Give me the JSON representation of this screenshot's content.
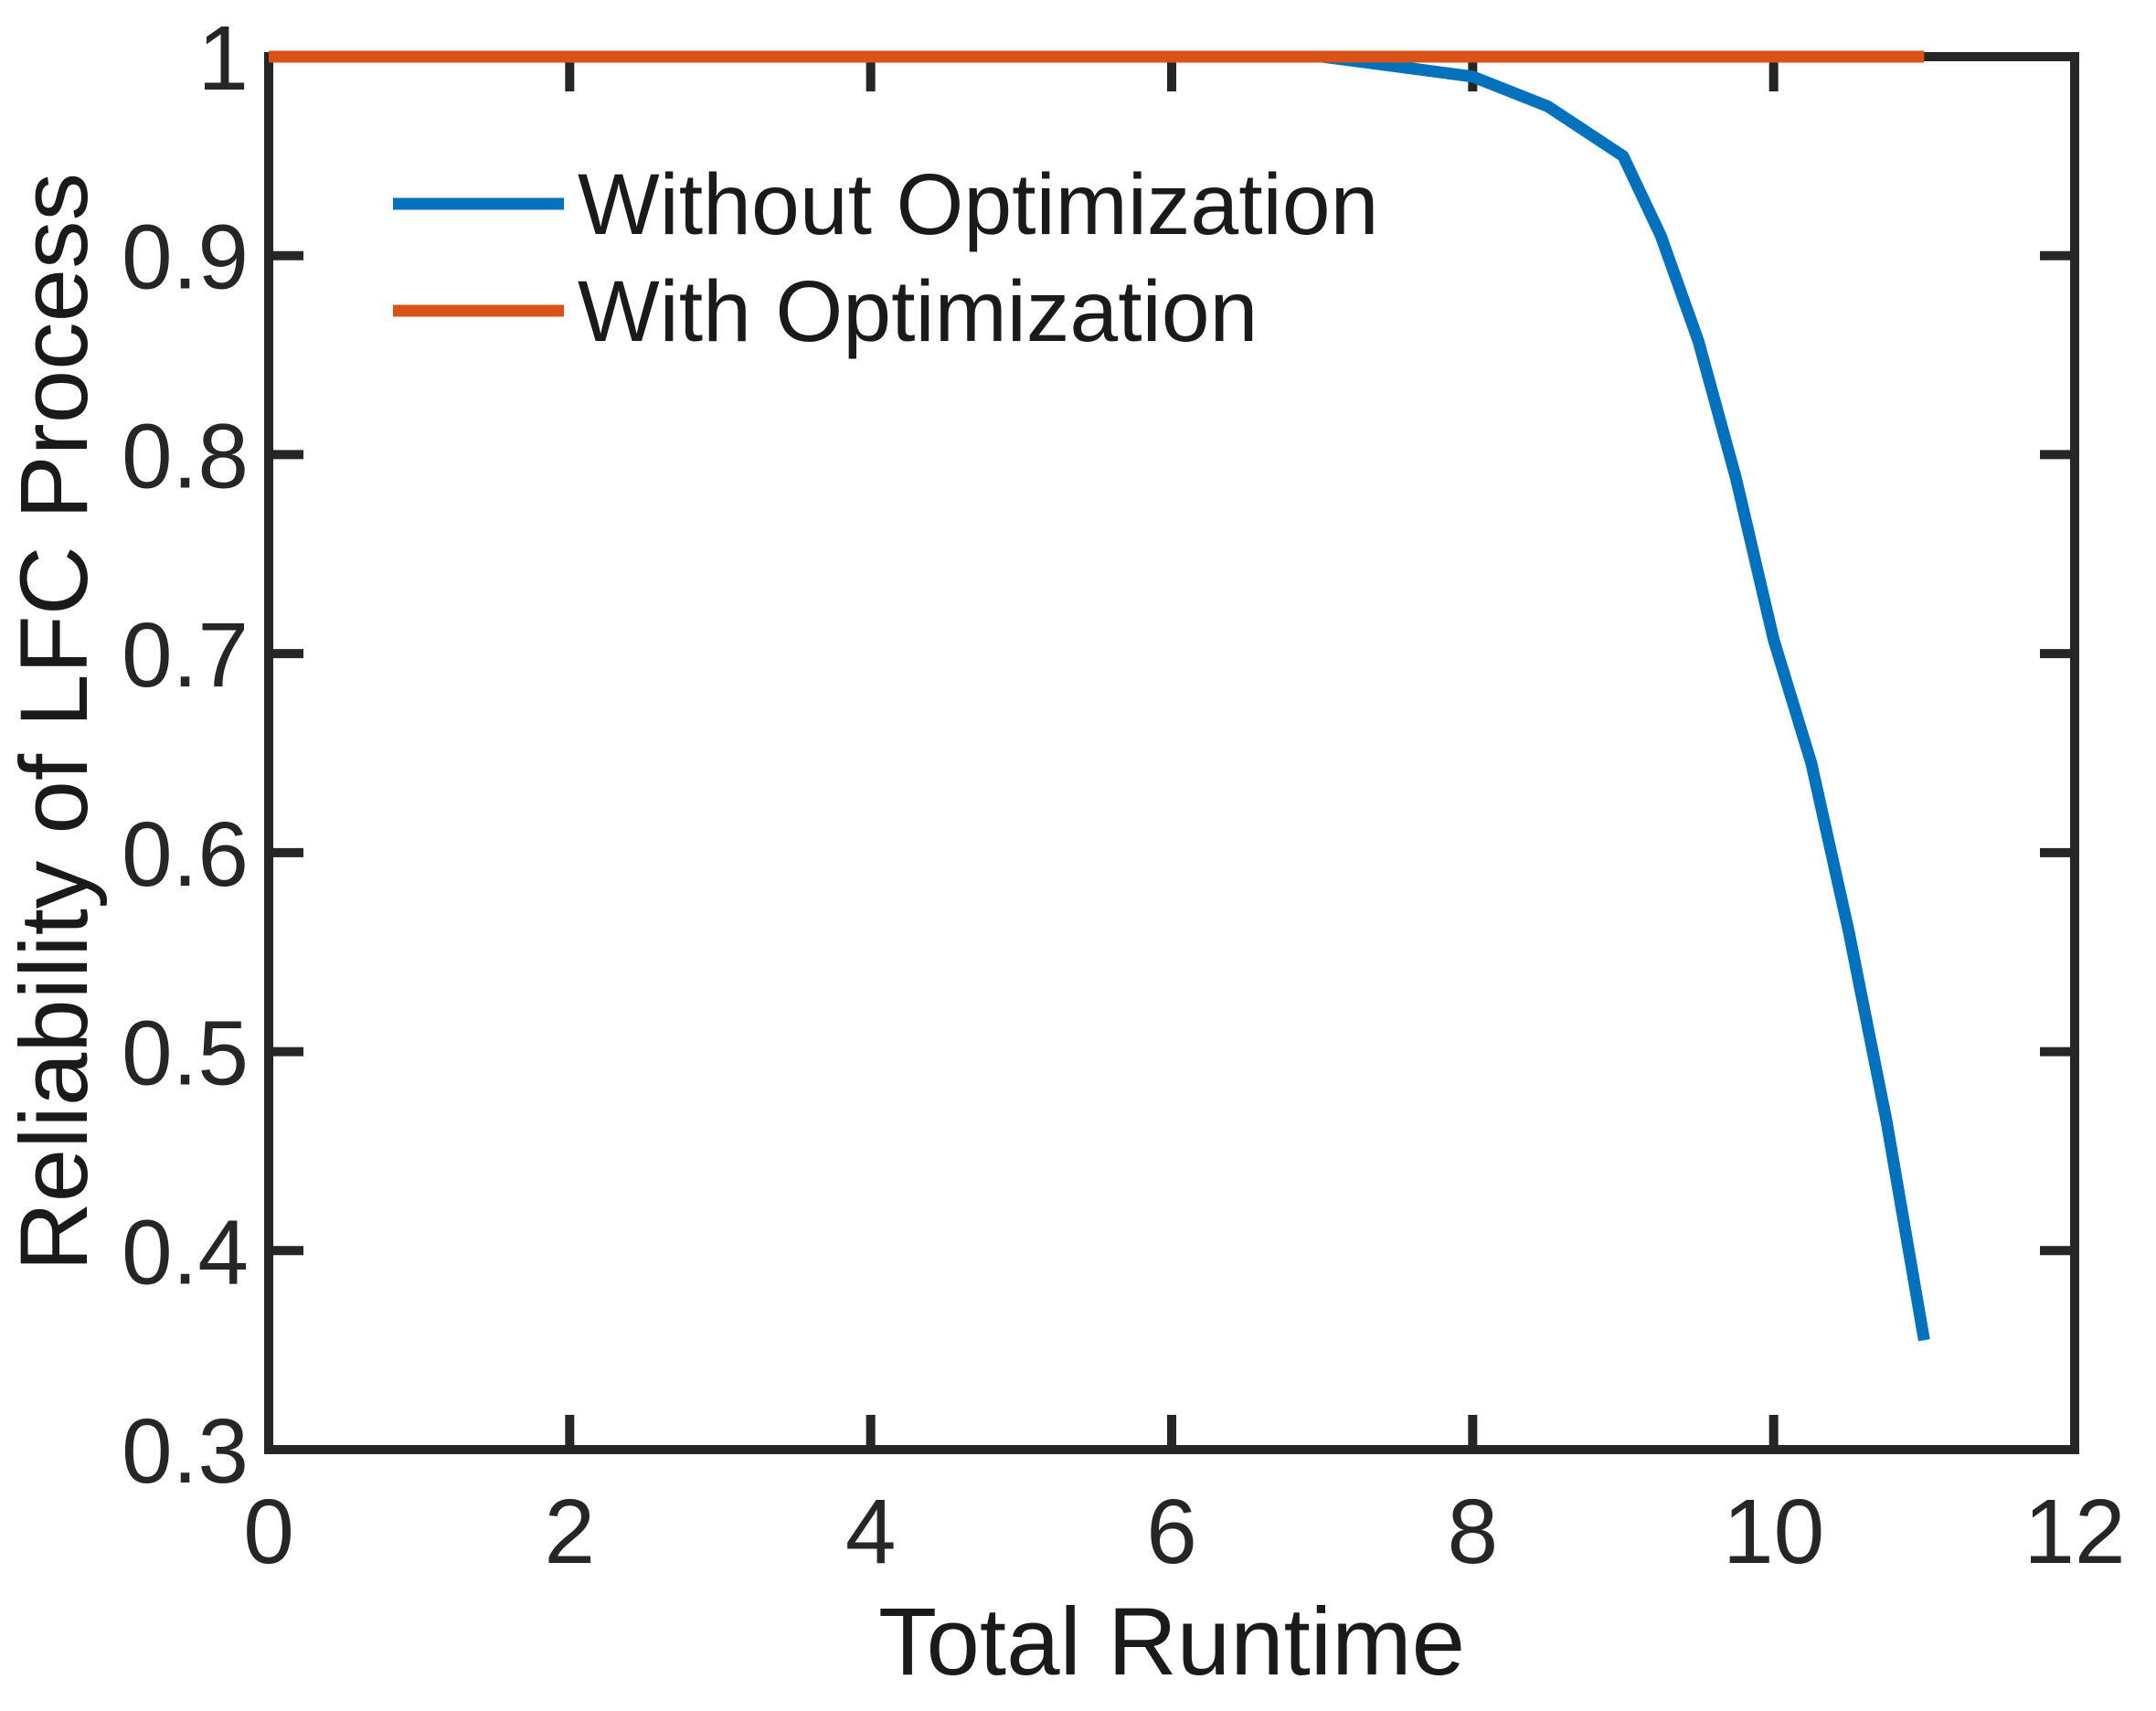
{
  "figure": {
    "background_color": "#ffffff",
    "axes_color": "#262626",
    "text_color": "#1a1a1a"
  },
  "chart_data": {
    "type": "line",
    "title": "",
    "xlabel": "Total Runtime",
    "ylabel": "Reliability of LFC Process",
    "xlim": [
      0,
      12
    ],
    "ylim": [
      0.3,
      1.0
    ],
    "grid": false,
    "legend_position": "upper-left-inside",
    "legend_frame": false,
    "x_tick_labels": [
      "0",
      "2",
      "4",
      "6",
      "8",
      "10",
      "12"
    ],
    "x_tick_values": [
      0,
      2,
      4,
      6,
      8,
      10,
      12
    ],
    "y_tick_labels": [
      "0.3",
      "0.4",
      "0.5",
      "0.6",
      "0.7",
      "0.8",
      "0.9",
      "1"
    ],
    "y_tick_values": [
      0.3,
      0.4,
      0.5,
      0.6,
      0.7,
      0.8,
      0.9,
      1.0
    ],
    "x": [
      0,
      1,
      2,
      3,
      4,
      5,
      6,
      7,
      8,
      8.5,
      9,
      9.25,
      9.5,
      9.75,
      10,
      10.25,
      10.5,
      10.75,
      11
    ],
    "series": [
      {
        "name": "Without Optimization",
        "color": "#0072BD",
        "values": [
          1,
          1,
          1,
          1,
          1,
          1,
          1,
          1,
          0.99,
          0.975,
          0.95,
          0.91,
          0.857,
          0.788,
          0.707,
          0.645,
          0.56,
          0.465,
          0.355
        ]
      },
      {
        "name": "With Optimization",
        "color": "#D95319",
        "values": [
          1,
          1,
          1,
          1,
          1,
          1,
          1,
          1,
          1,
          1,
          1,
          1,
          1,
          1,
          1,
          1,
          1,
          1,
          1
        ]
      }
    ]
  }
}
